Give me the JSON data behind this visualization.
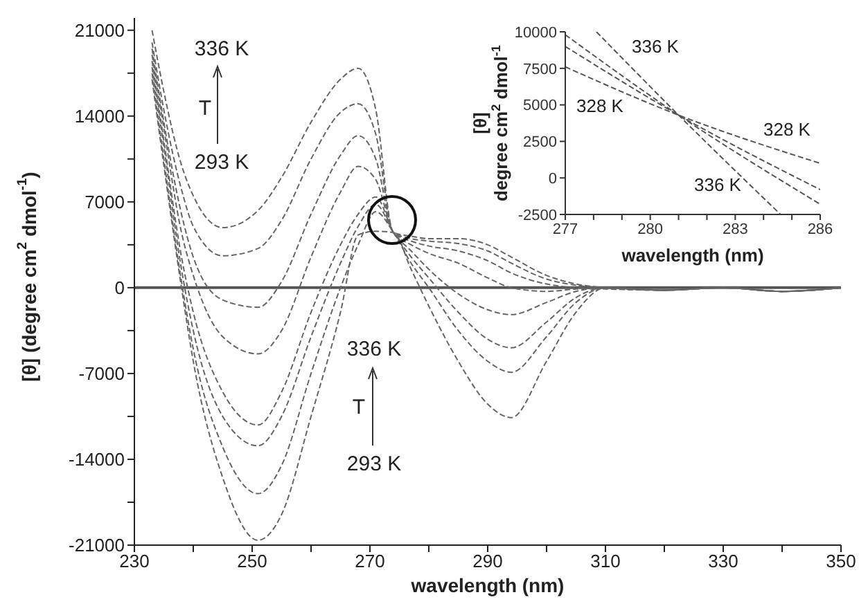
{
  "chart_data": [
    {
      "type": "line",
      "xlabel": "wavelength (nm)",
      "ylabel": "[θ]  (degree cm$^{2}$ dmol$^{-1}$)",
      "line_style": "dashed",
      "xlim": [
        230,
        350
      ],
      "ylim": [
        -21000,
        22000
      ],
      "xticks": [
        230,
        {
          "value": 240,
          "label": null
        },
        250,
        {
          "value": 260,
          "label": null
        },
        270,
        {
          "value": 280,
          "label": null
        },
        290,
        {
          "value": 300,
          "label": null
        },
        310,
        {
          "value": 320,
          "label": null
        },
        330,
        {
          "value": 340,
          "label": null
        },
        350
      ],
      "yticks": [
        -21000,
        {
          "value": -17500,
          "label": null
        },
        -14000,
        {
          "value": -10500,
          "label": null
        },
        -7000,
        {
          "value": -3500,
          "label": null
        },
        0,
        {
          "value": 3500,
          "label": null
        },
        7000,
        {
          "value": 10500,
          "label": null
        },
        14000,
        {
          "value": 17500,
          "label": null
        },
        21000
      ],
      "x": [
        233,
        235,
        238,
        240,
        245,
        251,
        255,
        260,
        265,
        268,
        271,
        274,
        277,
        280,
        285,
        290,
        294,
        300,
        305,
        310,
        320,
        330,
        340,
        350
      ],
      "series": [
        {
          "color": "#666666",
          "values": [
            21000,
            16000,
            10000,
            7500,
            4900,
            6300,
            9000,
            13500,
            17000,
            17900,
            14500,
            4500,
            4200,
            4000,
            4000,
            3500,
            2500,
            1000,
            300,
            0,
            -200,
            0,
            -300,
            0
          ]
        },
        {
          "color": "#666666",
          "values": [
            20000,
            14500,
            8000,
            5000,
            2600,
            3200,
            5500,
            10500,
            14300,
            15000,
            12500,
            4500,
            4000,
            3800,
            3600,
            3000,
            2000,
            700,
            200,
            0,
            -200,
            0,
            -300,
            0
          ]
        },
        {
          "color": "#666666",
          "values": [
            19500,
            13500,
            6000,
            2500,
            -1000,
            -1600,
            500,
            6000,
            10800,
            12400,
            10500,
            4500,
            3800,
            3400,
            3000,
            2200,
            1200,
            300,
            0,
            -100,
            -200,
            0,
            -300,
            0
          ]
        },
        {
          "color": "#666666",
          "values": [
            19000,
            13000,
            4500,
            1000,
            -4000,
            -5400,
            -3500,
            2500,
            7800,
            9900,
            8800,
            4500,
            3500,
            2800,
            2000,
            800,
            0,
            -300,
            -100,
            0,
            -200,
            0,
            -300,
            0
          ]
        },
        {
          "color": "#666666",
          "values": [
            18500,
            12000,
            2500,
            -2000,
            -8500,
            -11200,
            -8500,
            -2000,
            3500,
            6000,
            7400,
            4500,
            3000,
            1500,
            -500,
            -1800,
            -2200,
            -1200,
            -300,
            0,
            -200,
            0,
            -300,
            0
          ]
        },
        {
          "color": "#666666",
          "values": [
            18000,
            11500,
            1500,
            -3500,
            -10500,
            -12900,
            -10500,
            -4000,
            2000,
            5000,
            6800,
            4500,
            2500,
            800,
            -2000,
            -4200,
            -4900,
            -2800,
            -800,
            0,
            -200,
            0,
            -300,
            0
          ]
        },
        {
          "color": "#666666",
          "values": [
            17500,
            10500,
            500,
            -5000,
            -13000,
            -16800,
            -14500,
            -7000,
            0,
            3500,
            6200,
            4500,
            2000,
            0,
            -3500,
            -6000,
            -6900,
            -4000,
            -1200,
            0,
            -200,
            0,
            -300,
            0
          ]
        },
        {
          "color": "#666666",
          "values": [
            17000,
            10000,
            0,
            -6000,
            -15500,
            -20600,
            -18500,
            -10500,
            -2000,
            4300,
            4600,
            4500,
            1500,
            -1500,
            -6000,
            -9500,
            -10600,
            -6000,
            -2000,
            0,
            -200,
            0,
            -300,
            0
          ]
        }
      ],
      "ref_lines": [
        {
          "axis": "y",
          "value": 0,
          "color": "#555555",
          "line_style": "solid"
        }
      ],
      "annotations": [
        "336 K",
        "T",
        "293 K",
        "336 K",
        "T",
        "293 K"
      ]
    },
    {
      "type": "line",
      "xlabel": "wavelength (nm)",
      "ylabel": "[θ]\ndegree cm$^{2}$ dmol$^{-1}$",
      "line_style": "dashed",
      "xlim": [
        277,
        286
      ],
      "ylim": [
        -2500,
        10000
      ],
      "xticks": [
        277,
        {
          "value": 278,
          "label": null
        },
        {
          "value": 279,
          "label": null
        },
        280,
        {
          "value": 281,
          "label": null
        },
        {
          "value": 282,
          "label": null
        },
        283,
        {
          "value": 284,
          "label": null
        },
        {
          "value": 285,
          "label": null
        },
        286
      ],
      "yticks": [
        -2500,
        0,
        2500,
        5000,
        7500,
        10000
      ],
      "series": [
        {
          "color": "#555555",
          "x": [
            278.1,
            281,
            284.6
          ],
          "values": [
            10000,
            4300,
            -2500
          ]
        },
        {
          "color": "#555555",
          "x": [
            277,
            281,
            286
          ],
          "values": [
            9800,
            4300,
            -1800
          ]
        },
        {
          "color": "#555555",
          "x": [
            277,
            281,
            286
          ],
          "values": [
            9000,
            4300,
            -800
          ]
        },
        {
          "color": "#555555",
          "x": [
            277,
            281,
            286
          ],
          "values": [
            7600,
            4300,
            1000
          ]
        }
      ],
      "annotations": [
        "336 K",
        "328 K",
        "328 K",
        "336 K"
      ]
    }
  ]
}
